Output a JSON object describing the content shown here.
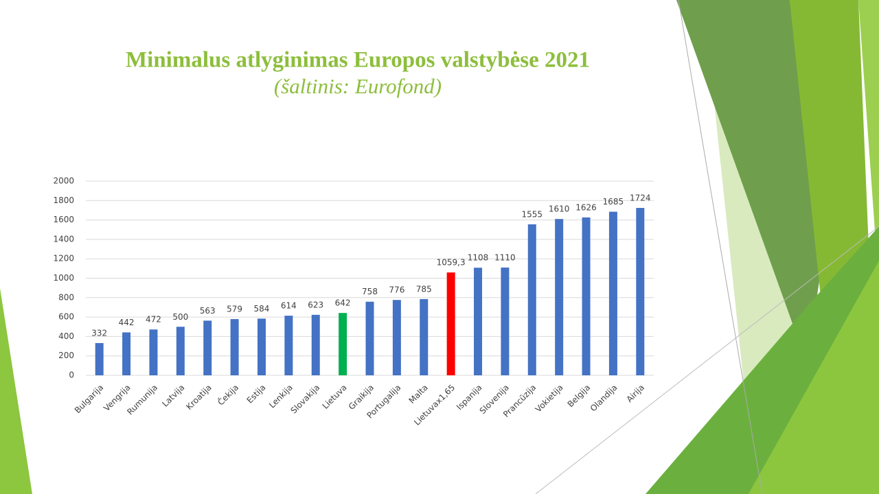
{
  "chart_data": {
    "type": "bar",
    "title": "Minimalus atlyginimas Europos valstybėse 2021",
    "subtitle": "(šaltinis: Eurofond)",
    "categories": [
      "Bulgarija",
      "Vengrija",
      "Rumunija",
      "Latvija",
      "Kroatija",
      "Čekija",
      "Estija",
      "Lenkija",
      "Slovakija",
      "Lietuva",
      "Graikija",
      "Portugalija",
      "Malta",
      "Lietuvax1,65",
      "Ispanija",
      "Slovenija",
      "Prancūzija",
      "Vokietija",
      "Belgija",
      "Olandija",
      "Airija"
    ],
    "values": [
      332,
      442,
      472,
      500,
      563,
      579,
      584,
      614,
      623,
      642,
      758,
      776,
      785,
      1059.3,
      1108,
      1110,
      1555,
      1610,
      1626,
      1685,
      1724
    ],
    "value_labels": [
      "332",
      "442",
      "472",
      "500",
      "563",
      "579",
      "584",
      "614",
      "623",
      "642",
      "758",
      "776",
      "785",
      "1059,3",
      "1108",
      "1110",
      "1555",
      "1610",
      "1626",
      "1685",
      "1724"
    ],
    "colors": [
      "#4472c4",
      "#4472c4",
      "#4472c4",
      "#4472c4",
      "#4472c4",
      "#4472c4",
      "#4472c4",
      "#4472c4",
      "#4472c4",
      "#00b050",
      "#4472c4",
      "#4472c4",
      "#4472c4",
      "#ff0000",
      "#4472c4",
      "#4472c4",
      "#4472c4",
      "#4472c4",
      "#4472c4",
      "#4472c4",
      "#4472c4"
    ],
    "ylim": [
      0,
      2000
    ],
    "yticks": [
      0,
      200,
      400,
      600,
      800,
      1000,
      1200,
      1400,
      1600,
      1800,
      2000
    ],
    "grid": true
  }
}
